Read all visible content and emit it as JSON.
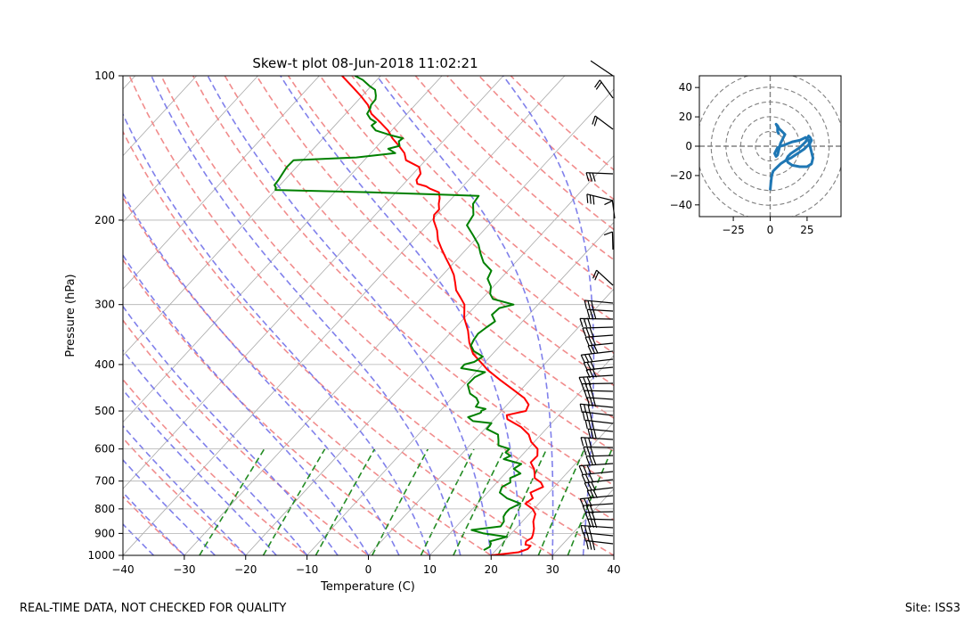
{
  "footer": {
    "left": "REAL-TIME DATA, NOT CHECKED FOR QUALITY",
    "right": "Site: ISS3"
  },
  "colors": {
    "temperature": "#ff0000",
    "dewpoint": "#008000",
    "dry_adiabat": "#f08080",
    "moist_adiabat": "#6a6ae8",
    "mixing_ratio": "#228b22",
    "isotherm": "#a9a9a9",
    "hodograph": "#1f77b4"
  },
  "chart_data": [
    {
      "type": "line",
      "subtype": "skew-t",
      "title": "Skew-t plot 08-Jun-2018 11:02:21",
      "xlabel": "Temperature (C)",
      "ylabel": "Pressure (hPa)",
      "xlim": [
        -40,
        40
      ],
      "ylim": [
        1000,
        100
      ],
      "yscale": "log",
      "skew_degrees_per_decade": 72,
      "x_ticks": [
        -40,
        -30,
        -20,
        -10,
        0,
        10,
        20,
        30,
        40
      ],
      "y_ticks": [
        1000,
        900,
        800,
        700,
        600,
        500,
        400,
        300,
        200,
        100
      ],
      "grid": true,
      "series": [
        {
          "role": "temperature",
          "p": [
            1000,
            985,
            970,
            955,
            950,
            935,
            920,
            905,
            880,
            850,
            820,
            800,
            780,
            760,
            740,
            720,
            705,
            690,
            675,
            660,
            640,
            620,
            600,
            580,
            560,
            540,
            520,
            510,
            500,
            485,
            470,
            450,
            430,
            410,
            400,
            380,
            360,
            340,
            320,
            300,
            290,
            280,
            270,
            260,
            250,
            240,
            230,
            220,
            210,
            200,
            195,
            190,
            185,
            180,
            175,
            172,
            170,
            168,
            165,
            160,
            155,
            150,
            145,
            140,
            135,
            130,
            125,
            120,
            115,
            110,
            105,
            100
          ],
          "t": [
            20,
            24,
            25,
            25,
            24,
            23.6,
            24,
            23.7,
            23,
            21.8,
            21,
            19.8,
            17.8,
            18.2,
            17,
            18.2,
            17.2,
            15.5,
            14.8,
            14,
            12.5,
            12.6,
            11.6,
            9.5,
            8,
            5.6,
            2.2,
            1.5,
            4,
            3.5,
            1.8,
            -1.5,
            -5,
            -8.5,
            -10,
            -13.2,
            -15.5,
            -17.5,
            -20,
            -22,
            -23.7,
            -25.5,
            -26.8,
            -28.2,
            -30,
            -32,
            -34,
            -36,
            -37.6,
            -39.7,
            -40.4,
            -40.4,
            -41.3,
            -42,
            -43,
            -45,
            -46,
            -47.8,
            -48.5,
            -48.8,
            -50,
            -53.2,
            -54.5,
            -56.5,
            -58.7,
            -60.6,
            -63.1,
            -65.8,
            -67.7,
            -70.3,
            -73.2,
            -76.3
          ]
        },
        {
          "role": "dewpoint",
          "p": [
            975,
            960,
            945,
            935,
            915,
            900,
            885,
            870,
            850,
            830,
            815,
            800,
            780,
            760,
            740,
            720,
            705,
            690,
            675,
            660,
            645,
            630,
            620,
            610,
            600,
            590,
            575,
            560,
            545,
            530,
            525,
            515,
            510,
            505,
            503,
            500,
            495,
            490,
            480,
            470,
            460,
            440,
            425,
            415,
            407,
            400,
            395,
            385,
            375,
            365,
            355,
            345,
            335,
            325,
            315,
            305,
            300,
            292,
            285,
            275,
            265,
            255,
            245,
            235,
            225,
            215,
            205,
            195,
            185,
            178,
            175,
            173,
            171,
            169,
            165,
            160,
            155,
            150,
            148,
            145,
            142,
            140,
            137,
            135,
            133,
            130,
            127,
            125,
            123,
            120,
            117,
            115,
            112,
            110,
            107,
            105,
            102,
            100
          ],
          "t": [
            18,
            18.5,
            18.2,
            17.7,
            19.8,
            15.5,
            13,
            17.2,
            17,
            16.2,
            16,
            16,
            17,
            14,
            12,
            11.5,
            12.2,
            11.5,
            12.5,
            10.7,
            11.2,
            7.6,
            8.2,
            6.9,
            7,
            4.7,
            3.9,
            3,
            0.3,
            0.2,
            -3.1,
            -4.5,
            -3.8,
            -3.2,
            -3.1,
            -3.3,
            -2.9,
            -4.8,
            -5,
            -6,
            -7.7,
            -9.5,
            -9.4,
            -8.5,
            -13,
            -13,
            -11.8,
            -11.2,
            -13.5,
            -14.8,
            -15.2,
            -15.4,
            -15,
            -14.5,
            -16,
            -15.8,
            -14,
            -18.2,
            -19.4,
            -20.4,
            -22.1,
            -22.7,
            -25.2,
            -27,
            -28.7,
            -31,
            -33.5,
            -34,
            -35.7,
            -36,
            -54,
            -70,
            -70.3,
            -70.9,
            -71,
            -71.3,
            -71.6,
            -71.5,
            -61.7,
            -56,
            -57.8,
            -56.4,
            -57.2,
            -57,
            -59.5,
            -62.6,
            -64,
            -63.8,
            -65.2,
            -66.5,
            -66.8,
            -67.2,
            -67.3,
            -67.8,
            -68.8,
            -70.3,
            -72.3,
            -74.2
          ]
        }
      ],
      "wind_barbs": "shown along right edge of plot",
      "background_lines": [
        "isotherms",
        "dry adiabats",
        "moist adiabats",
        "mixing ratio lines"
      ]
    },
    {
      "type": "line",
      "subtype": "hodograph",
      "xlim": [
        -48,
        48
      ],
      "ylim": [
        -48,
        48
      ],
      "x_ticks": [
        -25,
        0,
        25
      ],
      "y_ticks": [
        -40,
        -20,
        0,
        20,
        40
      ],
      "rings": [
        10,
        20,
        30,
        40,
        50
      ],
      "u": [
        0,
        0.5,
        1,
        2,
        4,
        7,
        10,
        14,
        17,
        20,
        23,
        25,
        27,
        28,
        27,
        26,
        25,
        24,
        22,
        20,
        17,
        14,
        12,
        11,
        12,
        15,
        20,
        25,
        28,
        29,
        28,
        27,
        26,
        24,
        22,
        20,
        15,
        10,
        7,
        5,
        4,
        3,
        4,
        5,
        6,
        7,
        8,
        9,
        10,
        8,
        6,
        5,
        4,
        5,
        5,
        6
      ],
      "v": [
        -30,
        -25,
        -20,
        -17,
        -15,
        -12,
        -10,
        -8,
        -6,
        -4,
        -2,
        0,
        2,
        4,
        6,
        7,
        5,
        3,
        1,
        -1,
        -3,
        -5,
        -7,
        -9,
        -11,
        -13,
        -14,
        -14,
        -12,
        -8,
        -4,
        0,
        4,
        6,
        5,
        4,
        3,
        1,
        0,
        -1,
        -3,
        -5,
        -7,
        -6,
        -2,
        2,
        4,
        6,
        8,
        10,
        12,
        14,
        15,
        13,
        10,
        8
      ]
    }
  ]
}
